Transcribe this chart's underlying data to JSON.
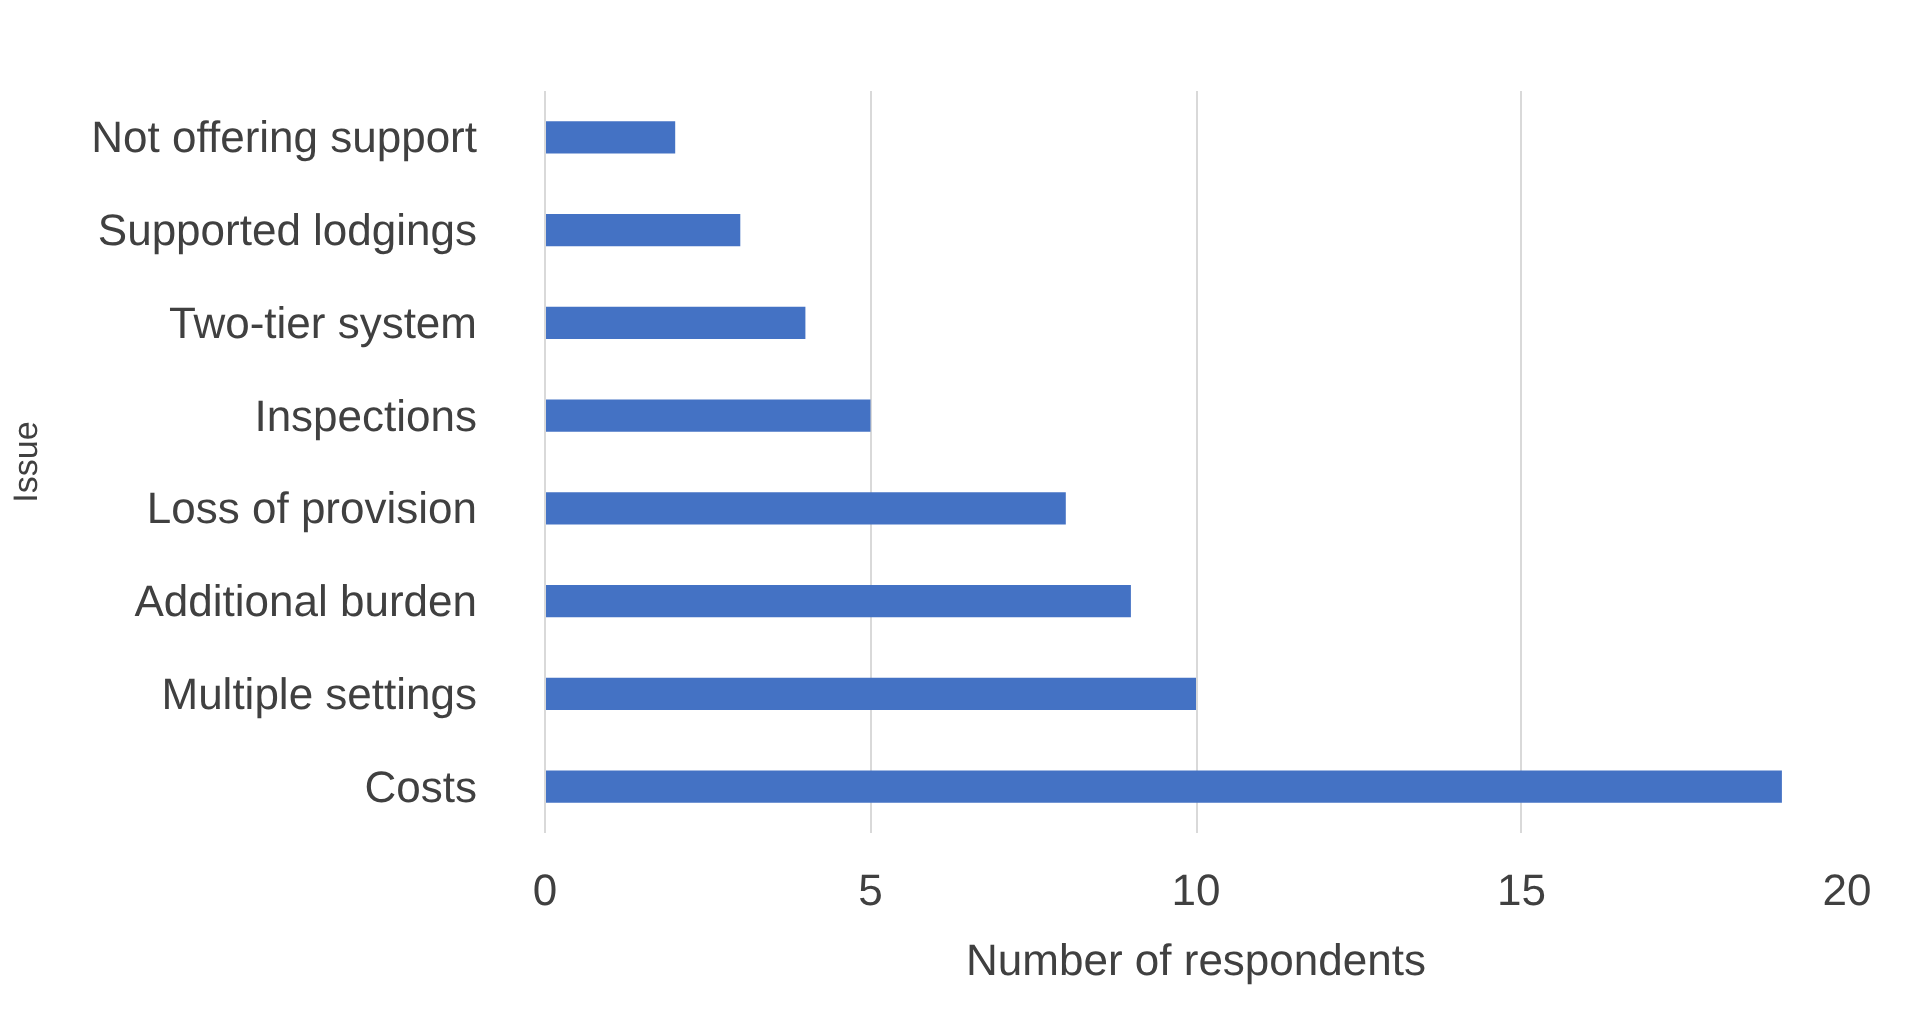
{
  "chart_data": {
    "type": "bar",
    "orientation": "horizontal",
    "xlabel": "Number of respondents",
    "ylabel": "Issue",
    "categories": [
      "Not offering support",
      "Supported lodgings",
      "Two-tier system",
      "Inspections",
      "Loss of provision",
      "Additional burden",
      "Multiple settings",
      "Costs"
    ],
    "values": [
      2,
      3,
      4,
      5,
      8,
      9,
      10,
      19
    ],
    "color": "#4472c4",
    "xlim": [
      0,
      20
    ],
    "xticks": [
      0,
      5,
      10,
      15,
      20
    ],
    "grid": "x"
  }
}
